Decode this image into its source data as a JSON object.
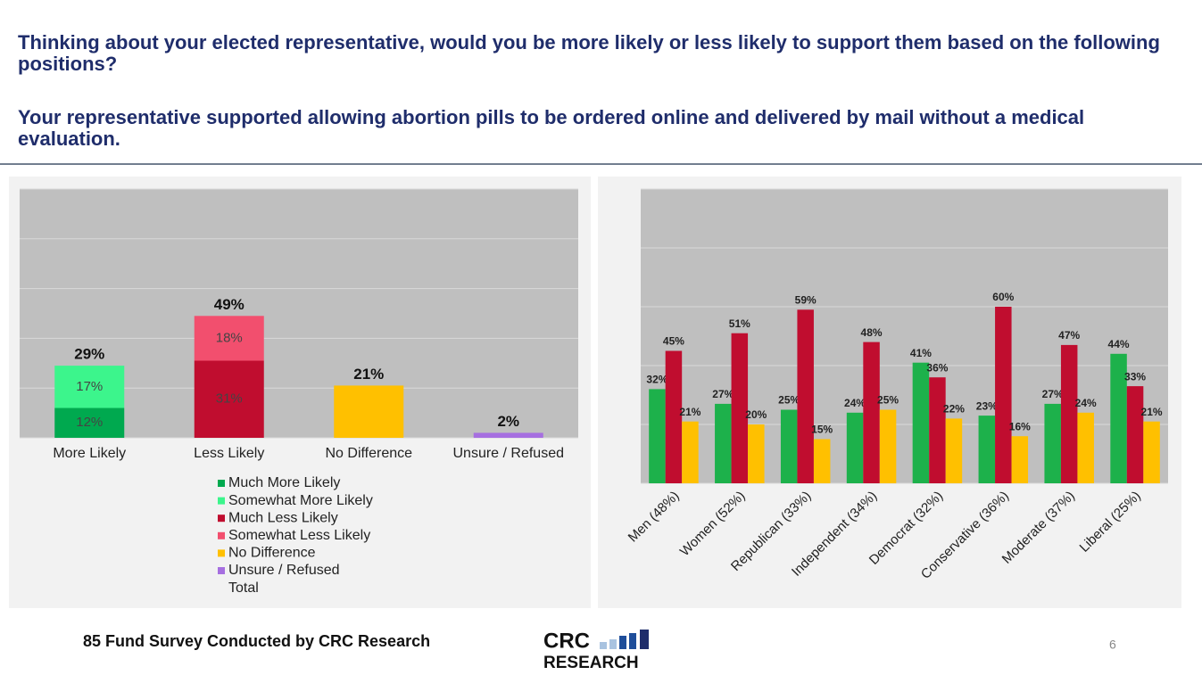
{
  "header": {
    "question": "Thinking about your elected representative, would you be more likely or less likely to support them based on the following positions?",
    "statement": "Your representative supported allowing abortion pills to be ordered online and delivered by mail without a medical evaluation."
  },
  "chart_data": [
    {
      "type": "bar",
      "stacked": true,
      "categories": [
        "More Likely",
        "Less Likely",
        "No Difference",
        "Unsure / Refused"
      ],
      "series": [
        {
          "name": "Much More Likely",
          "color": "#00a94f",
          "values": [
            12,
            null,
            null,
            null
          ],
          "value_labels": [
            "12%",
            null,
            null,
            null
          ]
        },
        {
          "name": "Somewhat More Likely",
          "color": "#3cf58c",
          "values": [
            17,
            null,
            null,
            null
          ],
          "value_labels": [
            "17%",
            null,
            null,
            null
          ]
        },
        {
          "name": "Much Less Likely",
          "color": "#c00d2f",
          "values": [
            null,
            31,
            null,
            null
          ],
          "value_labels": [
            null,
            "31%",
            null,
            null
          ]
        },
        {
          "name": "Somewhat Less Likely",
          "color": "#f24f6e",
          "values": [
            null,
            18,
            null,
            null
          ],
          "value_labels": [
            null,
            "18%",
            null,
            null
          ]
        },
        {
          "name": "No Difference",
          "color": "#ffc000",
          "values": [
            null,
            null,
            21,
            null
          ],
          "value_labels": [
            null,
            null,
            null,
            null
          ]
        },
        {
          "name": "Unsure / Refused",
          "color": "#a66fe0",
          "values": [
            null,
            null,
            null,
            2
          ],
          "value_labels": [
            null,
            null,
            null,
            null
          ]
        },
        {
          "name": "Total",
          "values": [
            29,
            49,
            21,
            2
          ],
          "value_labels": [
            "29%",
            "49%",
            "21%",
            "2%"
          ]
        }
      ],
      "ylim": [
        0,
        100
      ],
      "yticks": [
        0,
        20,
        40,
        60,
        80,
        100
      ],
      "grid": true
    },
    {
      "type": "bar",
      "categories": [
        "Men (48%)",
        "Women (52%)",
        "Republican (33%)",
        "Independent (34%)",
        "Democrat (32%)",
        "Conservative (36%)",
        "Moderate (37%)",
        "Liberal (25%)"
      ],
      "series": [
        {
          "color": "#1db14b",
          "values": [
            32,
            27,
            25,
            24,
            41,
            23,
            27,
            44
          ],
          "value_labels": [
            "32%",
            "27%",
            "25%",
            "24%",
            "41%",
            "23%",
            "27%",
            "44%"
          ]
        },
        {
          "color": "#c00d2f",
          "values": [
            45,
            51,
            59,
            48,
            36,
            60,
            47,
            33
          ],
          "value_labels": [
            "45%",
            "51%",
            "59%",
            "48%",
            "36%",
            "60%",
            "47%",
            "33%"
          ]
        },
        {
          "color": "#ffc000",
          "values": [
            21,
            20,
            15,
            25,
            22,
            16,
            24,
            21
          ],
          "value_labels": [
            "21%",
            "20%",
            "15%",
            "25%",
            "22%",
            "16%",
            "24%",
            "21%"
          ]
        }
      ],
      "ylim": [
        0,
        100
      ],
      "yticks": [
        0,
        20,
        40,
        60,
        80,
        100
      ],
      "grid": true
    }
  ],
  "footer": {
    "source": "85 Fund Survey Conducted by CRC Research",
    "logo_top": "CRC",
    "logo_bottom": "RESEARCH",
    "page": "6"
  }
}
